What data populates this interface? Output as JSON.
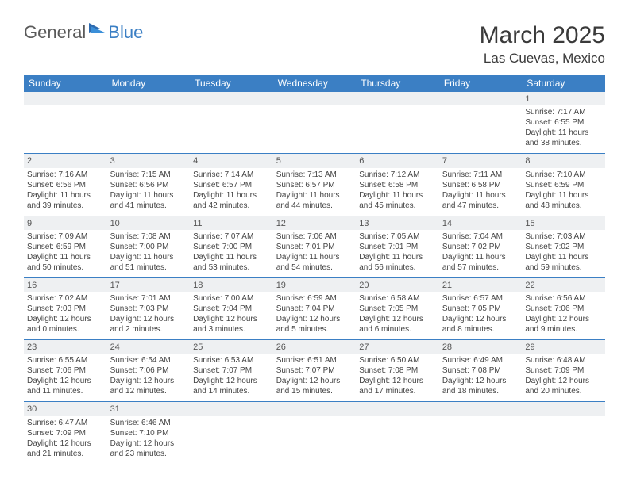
{
  "logo": {
    "text1": "General",
    "text2": "Blue"
  },
  "title": "March 2025",
  "location": "Las Cuevas, Mexico",
  "colors": {
    "header_bg": "#3b7fc4",
    "header_text": "#ffffff",
    "daynum_bg": "#eef0f2",
    "border": "#3b7fc4",
    "body_text": "#444444",
    "title_text": "#3a3a3a"
  },
  "weekdays": [
    "Sunday",
    "Monday",
    "Tuesday",
    "Wednesday",
    "Thursday",
    "Friday",
    "Saturday"
  ],
  "weeks": [
    [
      null,
      null,
      null,
      null,
      null,
      null,
      {
        "n": "1",
        "sr": "7:17 AM",
        "ss": "6:55 PM",
        "dl": "11 hours and 38 minutes."
      }
    ],
    [
      {
        "n": "2",
        "sr": "7:16 AM",
        "ss": "6:56 PM",
        "dl": "11 hours and 39 minutes."
      },
      {
        "n": "3",
        "sr": "7:15 AM",
        "ss": "6:56 PM",
        "dl": "11 hours and 41 minutes."
      },
      {
        "n": "4",
        "sr": "7:14 AM",
        "ss": "6:57 PM",
        "dl": "11 hours and 42 minutes."
      },
      {
        "n": "5",
        "sr": "7:13 AM",
        "ss": "6:57 PM",
        "dl": "11 hours and 44 minutes."
      },
      {
        "n": "6",
        "sr": "7:12 AM",
        "ss": "6:58 PM",
        "dl": "11 hours and 45 minutes."
      },
      {
        "n": "7",
        "sr": "7:11 AM",
        "ss": "6:58 PM",
        "dl": "11 hours and 47 minutes."
      },
      {
        "n": "8",
        "sr": "7:10 AM",
        "ss": "6:59 PM",
        "dl": "11 hours and 48 minutes."
      }
    ],
    [
      {
        "n": "9",
        "sr": "7:09 AM",
        "ss": "6:59 PM",
        "dl": "11 hours and 50 minutes."
      },
      {
        "n": "10",
        "sr": "7:08 AM",
        "ss": "7:00 PM",
        "dl": "11 hours and 51 minutes."
      },
      {
        "n": "11",
        "sr": "7:07 AM",
        "ss": "7:00 PM",
        "dl": "11 hours and 53 minutes."
      },
      {
        "n": "12",
        "sr": "7:06 AM",
        "ss": "7:01 PM",
        "dl": "11 hours and 54 minutes."
      },
      {
        "n": "13",
        "sr": "7:05 AM",
        "ss": "7:01 PM",
        "dl": "11 hours and 56 minutes."
      },
      {
        "n": "14",
        "sr": "7:04 AM",
        "ss": "7:02 PM",
        "dl": "11 hours and 57 minutes."
      },
      {
        "n": "15",
        "sr": "7:03 AM",
        "ss": "7:02 PM",
        "dl": "11 hours and 59 minutes."
      }
    ],
    [
      {
        "n": "16",
        "sr": "7:02 AM",
        "ss": "7:03 PM",
        "dl": "12 hours and 0 minutes."
      },
      {
        "n": "17",
        "sr": "7:01 AM",
        "ss": "7:03 PM",
        "dl": "12 hours and 2 minutes."
      },
      {
        "n": "18",
        "sr": "7:00 AM",
        "ss": "7:04 PM",
        "dl": "12 hours and 3 minutes."
      },
      {
        "n": "19",
        "sr": "6:59 AM",
        "ss": "7:04 PM",
        "dl": "12 hours and 5 minutes."
      },
      {
        "n": "20",
        "sr": "6:58 AM",
        "ss": "7:05 PM",
        "dl": "12 hours and 6 minutes."
      },
      {
        "n": "21",
        "sr": "6:57 AM",
        "ss": "7:05 PM",
        "dl": "12 hours and 8 minutes."
      },
      {
        "n": "22",
        "sr": "6:56 AM",
        "ss": "7:06 PM",
        "dl": "12 hours and 9 minutes."
      }
    ],
    [
      {
        "n": "23",
        "sr": "6:55 AM",
        "ss": "7:06 PM",
        "dl": "12 hours and 11 minutes."
      },
      {
        "n": "24",
        "sr": "6:54 AM",
        "ss": "7:06 PM",
        "dl": "12 hours and 12 minutes."
      },
      {
        "n": "25",
        "sr": "6:53 AM",
        "ss": "7:07 PM",
        "dl": "12 hours and 14 minutes."
      },
      {
        "n": "26",
        "sr": "6:51 AM",
        "ss": "7:07 PM",
        "dl": "12 hours and 15 minutes."
      },
      {
        "n": "27",
        "sr": "6:50 AM",
        "ss": "7:08 PM",
        "dl": "12 hours and 17 minutes."
      },
      {
        "n": "28",
        "sr": "6:49 AM",
        "ss": "7:08 PM",
        "dl": "12 hours and 18 minutes."
      },
      {
        "n": "29",
        "sr": "6:48 AM",
        "ss": "7:09 PM",
        "dl": "12 hours and 20 minutes."
      }
    ],
    [
      {
        "n": "30",
        "sr": "6:47 AM",
        "ss": "7:09 PM",
        "dl": "12 hours and 21 minutes."
      },
      {
        "n": "31",
        "sr": "6:46 AM",
        "ss": "7:10 PM",
        "dl": "12 hours and 23 minutes."
      },
      null,
      null,
      null,
      null,
      null
    ]
  ],
  "labels": {
    "sunrise": "Sunrise:",
    "sunset": "Sunset:",
    "daylight": "Daylight:"
  }
}
